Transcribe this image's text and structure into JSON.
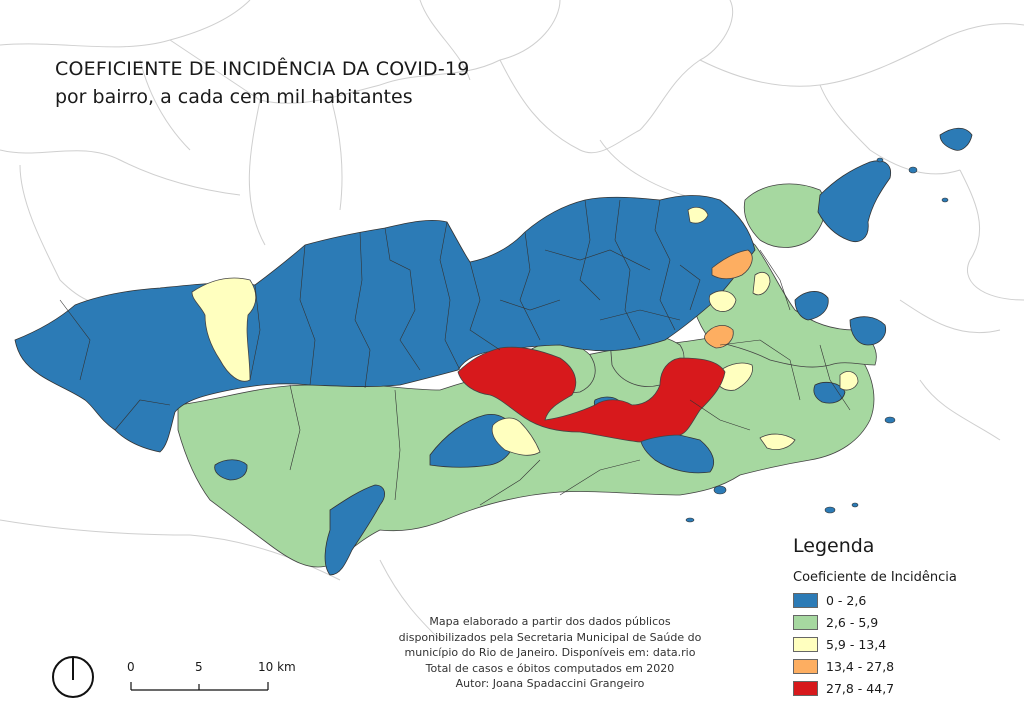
{
  "title": {
    "line1": "COEFICIENTE DE INCIDÊNCIA DA COVID-19",
    "line2": "por bairro, a cada cem mil habitantes"
  },
  "legend": {
    "title": "Legenda",
    "subtitle": "Coeficiente de Incidência",
    "classes": [
      {
        "label": "0 - 2,6",
        "color": "#2c7bb6"
      },
      {
        "label": "2,6 - 5,9",
        "color": "#a6d8a0"
      },
      {
        "label": "5,9 - 13,4",
        "color": "#ffffbf"
      },
      {
        "label": "13,4 - 27,8",
        "color": "#fdae61"
      },
      {
        "label": "27,8 - 44,7",
        "color": "#d7191c"
      }
    ]
  },
  "source_note": {
    "lines": [
      "Mapa elaborado a partir dos dados públicos",
      "disponibilizados pela Secretaria Municipal de Saúde do",
      "município do Rio de Janeiro. Disponíveis em: data.rio",
      "Total de casos e óbitos computados em 2020",
      "Autor: Joana Spadaccini Grangeiro"
    ]
  },
  "scale_bar": {
    "labels": [
      "0",
      "5",
      "10 km"
    ]
  },
  "north_arrow": {
    "icon": "north-arrow-icon"
  },
  "colors": {
    "outline": "#444444",
    "surrounding_border": "#cfcfcf"
  }
}
